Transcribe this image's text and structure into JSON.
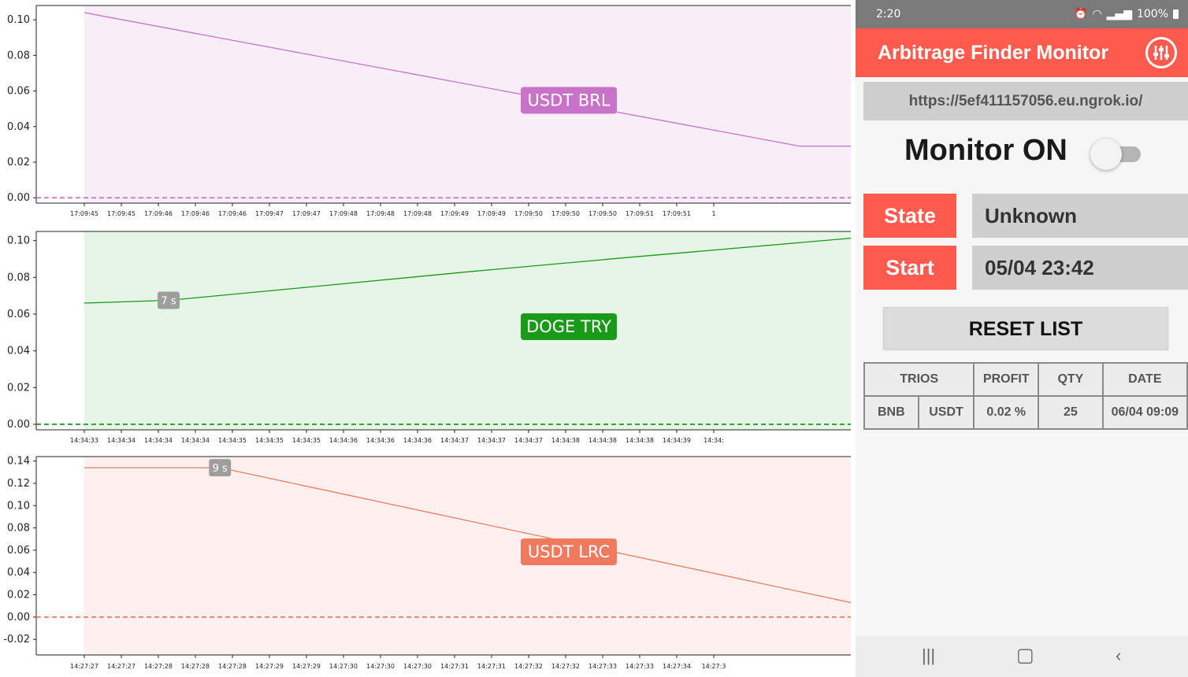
{
  "chart_data": [
    {
      "type": "line",
      "name": "usdt-brl",
      "label": "USDT BRL",
      "color": "#c873c8",
      "fill": "#f8eef8",
      "ylim": [
        -0.003,
        0.108
      ],
      "yticks": [
        "0.00",
        "0.02",
        "0.04",
        "0.06",
        "0.08",
        "0.10"
      ],
      "ytick_values": [
        0.0,
        0.02,
        0.04,
        0.06,
        0.08,
        0.1
      ],
      "xticks": [
        "17:09:45",
        "17:09:45",
        "17:09:46",
        "17:09:46",
        "17:09:46",
        "17:09:47",
        "17:09:47",
        "17:09:48",
        "17:09:48",
        "17:09:48",
        "17:09:49",
        "17:09:49",
        "17:09:50",
        "17:09:50",
        "17:09:50",
        "17:09:51",
        "17:09:51",
        "1"
      ],
      "x": [
        0,
        93.3,
        100
      ],
      "y": [
        0.104,
        0.029,
        0.029
      ],
      "badge": null
    },
    {
      "type": "line",
      "name": "doge-try",
      "label": "DOGE TRY",
      "color": "#1a9a1a",
      "fill": "#e7f5e7",
      "ylim": [
        -0.003,
        0.105
      ],
      "yticks": [
        "0.00",
        "0.02",
        "0.04",
        "0.06",
        "0.08",
        "0.10"
      ],
      "ytick_values": [
        0.0,
        0.02,
        0.04,
        0.06,
        0.08,
        0.1
      ],
      "xticks": [
        "14:34:33",
        "14:34:34",
        "14:34:34",
        "14:34:34",
        "14:34:35",
        "14:34:35",
        "14:34:35",
        "14:34:36",
        "14:34:36",
        "14:34:36",
        "14:34:37",
        "14:34:37",
        "14:34:37",
        "14:34:38",
        "14:34:38",
        "14:34:38",
        "14:34:39",
        "14:34:"
      ],
      "x": [
        0,
        11,
        30,
        50,
        70,
        100
      ],
      "y": [
        0.066,
        0.0675,
        0.075,
        0.083,
        0.0905,
        0.1013
      ],
      "badge": {
        "text": "7 s",
        "x": 11,
        "y": 0.0675
      }
    },
    {
      "type": "line",
      "name": "usdt-lrc",
      "label": "USDT LRC",
      "color": "#f07a5e",
      "fill": "#fef0ee",
      "ylim": [
        -0.034,
        0.144
      ],
      "yticks": [
        "-0.02",
        "0.00",
        "0.02",
        "0.04",
        "0.06",
        "0.08",
        "0.10",
        "0.12",
        "0.14"
      ],
      "ytick_values": [
        -0.02,
        0.0,
        0.02,
        0.04,
        0.06,
        0.08,
        0.1,
        0.12,
        0.14
      ],
      "xticks": [
        "14:27:27",
        "14:27:27",
        "14:27:28",
        "14:27:28",
        "14:27:28",
        "14:27:29",
        "14:27:29",
        "14:27:30",
        "14:27:30",
        "14:27:30",
        "14:27:31",
        "14:27:31",
        "14:27:32",
        "14:27:32",
        "14:27:33",
        "14:27:33",
        "14:27:34",
        "14:27:3"
      ],
      "x": [
        0,
        17.7,
        100
      ],
      "y": [
        0.134,
        0.134,
        0.013
      ],
      "badge": {
        "text": "9 s",
        "x": 17.7,
        "y": 0.134
      }
    }
  ],
  "status_bar": {
    "time": "2:20",
    "battery": "100%"
  },
  "app": {
    "title": "Arbitrage Finder Monitor",
    "settings_icon": "equalizer-icon",
    "url": "https://5ef411157056.eu.ngrok.io/",
    "monitor_label": "Monitor ON",
    "monitor_toggle": "off",
    "state_label": "State",
    "state_value": "Unknown",
    "start_label": "Start",
    "start_value": "05/04 23:42",
    "reset_label": "RESET LIST",
    "accent": "#ff5a4e"
  },
  "table": {
    "headers": [
      "TRIOS",
      "PROFIT",
      "QTY",
      "DATE"
    ],
    "rows": [
      {
        "trio_a": "BNB",
        "trio_b": "USDT",
        "profit": "0.02 %",
        "qty": "25",
        "date": "06/04 09:09"
      }
    ]
  },
  "navbar": {
    "recent": "recent-apps-icon",
    "home": "home-icon",
    "back": "back-icon"
  }
}
